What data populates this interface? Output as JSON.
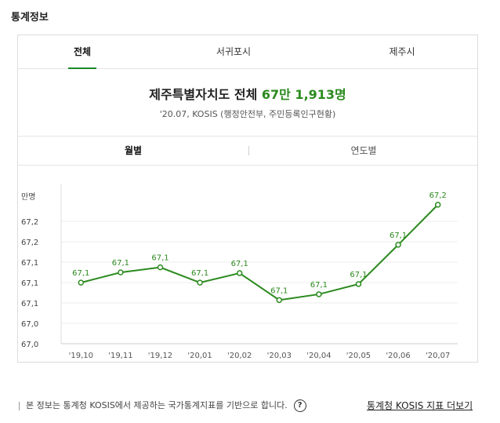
{
  "section_title": "통계정보",
  "tabs": [
    {
      "label": "전체",
      "active": true
    },
    {
      "label": "서귀포시",
      "active": false
    },
    {
      "label": "제주시",
      "active": false
    }
  ],
  "summary": {
    "prefix": "제주특별자치도 전체",
    "value": "67만 1,913명",
    "source": "'20.07, KOSIS (행정안전부, 주민등록인구현황)"
  },
  "subtabs": [
    {
      "label": "월별",
      "active": true
    },
    {
      "label": "연도별",
      "active": false
    }
  ],
  "chart_data": {
    "type": "line",
    "ylabel": "만명",
    "y_tick_labels": [
      "67,0",
      "67,0",
      "67,1",
      "67,1",
      "67,1",
      "67,2",
      "67,2"
    ],
    "categories": [
      "'19,10",
      "'19,11",
      "'19,12",
      "'20,01",
      "'20,02",
      "'20,03",
      "'20,04",
      "'20,05",
      "'20,06",
      "'20,07"
    ],
    "values": [
      67.084,
      67.098,
      67.105,
      67.084,
      67.097,
      67.06,
      67.068,
      67.082,
      67.136,
      67.191
    ],
    "data_labels": [
      "67,1",
      "67,1",
      "67,1",
      "67,1",
      "67,1",
      "67,1",
      "67,1",
      "67,1",
      "67,1",
      "67,2"
    ],
    "ylim": [
      67.0,
      67.22
    ],
    "line_color": "#2b8a1e",
    "grid": true
  },
  "footer": {
    "note": "본 정보는 통계청 KOSIS에서 제공하는 국가통계지표를 기반으로 합니다.",
    "help_icon": "?",
    "more_link": "통계청 KOSIS 지표 더보기"
  }
}
